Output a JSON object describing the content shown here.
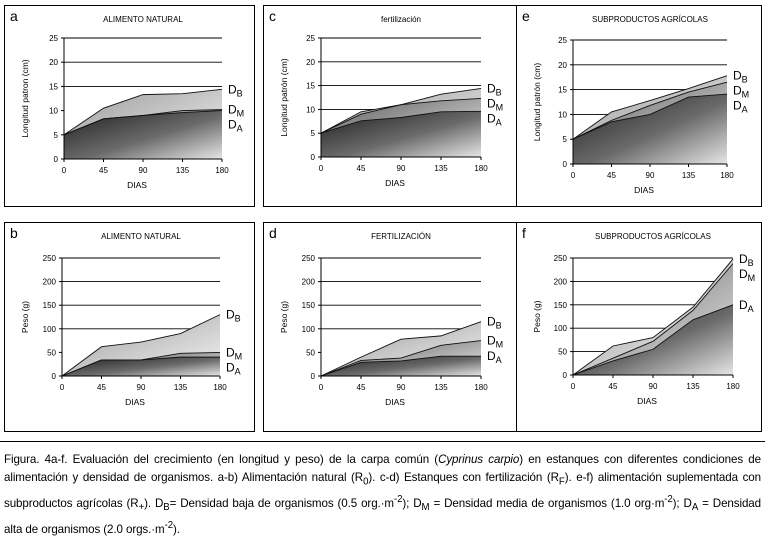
{
  "panels": [
    {
      "letter": "a",
      "title": "ALIMENTO NATURAL",
      "chart_data": {
        "type": "area",
        "ylabel": "Longitud patron  (cm)",
        "xlabel": "DIAS",
        "x": [
          0,
          45,
          90,
          135,
          180
        ],
        "ylim": [
          0,
          25
        ],
        "yticks": [
          0,
          5,
          10,
          15,
          20,
          25
        ],
        "gridlines": [
          15,
          20,
          25
        ],
        "series": [
          {
            "name": "DB",
            "values": [
              5,
              10.5,
              13.3,
              13.5,
              14.4
            ]
          },
          {
            "name": "DM",
            "values": [
              5,
              8.3,
              9.0,
              10.0,
              10.2
            ]
          },
          {
            "name": "DA",
            "values": [
              5,
              8.3,
              9.0,
              9.6,
              10.0
            ]
          }
        ]
      }
    },
    {
      "letter": "c",
      "title": "fertilización",
      "chart_data": {
        "type": "area",
        "ylabel": "Longitud patrón  (cm)",
        "xlabel": "DIAS",
        "x": [
          0,
          45,
          90,
          135,
          180
        ],
        "ylim": [
          0,
          25
        ],
        "yticks": [
          0,
          5,
          10,
          15,
          20,
          25
        ],
        "gridlines": [
          10,
          15,
          20,
          25
        ],
        "series": [
          {
            "name": "DB",
            "values": [
              5,
              9.5,
              11.0,
              13.2,
              14.4
            ]
          },
          {
            "name": "DM",
            "values": [
              5,
              9.0,
              11.0,
              11.8,
              12.3
            ]
          },
          {
            "name": "DA",
            "values": [
              5,
              7.6,
              8.3,
              9.5,
              9.6
            ]
          }
        ]
      }
    },
    {
      "letter": "e",
      "title": "SUBPRODUCTOS AGRÍCOLAS",
      "chart_data": {
        "type": "area",
        "ylabel": "Longitud patrón  (cm)",
        "xlabel": "DIAS",
        "x": [
          0,
          45,
          90,
          135,
          180
        ],
        "ylim": [
          0,
          25
        ],
        "yticks": [
          0,
          5,
          10,
          15,
          20,
          25
        ],
        "gridlines": [
          10,
          15,
          20,
          25
        ],
        "series": [
          {
            "name": "DB",
            "values": [
              5,
              10.5,
              12.8,
              15.2,
              17.8
            ]
          },
          {
            "name": "DM",
            "values": [
              5,
              8.8,
              11.8,
              14.5,
              16.5
            ]
          },
          {
            "name": "DA",
            "values": [
              5,
              8.5,
              10.0,
              13.5,
              14.1
            ]
          }
        ]
      }
    },
    {
      "letter": "b",
      "title": "ALIMENTO NATURAL",
      "chart_data": {
        "type": "area",
        "ylabel": "Peso  (g)",
        "xlabel": "DIAS",
        "x": [
          0,
          45,
          90,
          135,
          180
        ],
        "ylim": [
          0,
          250
        ],
        "yticks": [
          0,
          50,
          100,
          150,
          200,
          250
        ],
        "gridlines": [
          100,
          150,
          200,
          250
        ],
        "series": [
          {
            "name": "DB",
            "values": [
              0,
              62,
              72,
              90,
              130
            ]
          },
          {
            "name": "DM",
            "values": [
              0,
              34,
              34,
              48,
              50
            ]
          },
          {
            "name": "DA",
            "values": [
              0,
              34,
              34,
              40,
              40
            ]
          }
        ]
      }
    },
    {
      "letter": "d",
      "title": "FERTILIZACIÓN",
      "chart_data": {
        "type": "area",
        "ylabel": "Peso  (g)",
        "xlabel": "DIAS",
        "x": [
          0,
          45,
          90,
          135,
          180
        ],
        "ylim": [
          0,
          250
        ],
        "yticks": [
          0,
          50,
          100,
          150,
          200,
          250
        ],
        "gridlines": [
          100,
          150,
          200,
          250
        ],
        "series": [
          {
            "name": "DB",
            "values": [
              0,
              40,
              78,
              85,
              115
            ]
          },
          {
            "name": "DM",
            "values": [
              0,
              33,
              38,
              65,
              75
            ]
          },
          {
            "name": "DA",
            "values": [
              0,
              29,
              32,
              42,
              42
            ]
          }
        ]
      }
    },
    {
      "letter": "f",
      "title": "SUBPRODUCTOS AGRÍCOLAS",
      "chart_data": {
        "type": "area",
        "ylabel": "Peso  (g)",
        "xlabel": "DIAS",
        "x": [
          0,
          45,
          90,
          135,
          180
        ],
        "ylim": [
          0,
          250
        ],
        "yticks": [
          0,
          50,
          100,
          150,
          200,
          250
        ],
        "gridlines": [
          50,
          100,
          150,
          200,
          250
        ],
        "series": [
          {
            "name": "DB",
            "values": [
              0,
              62,
              80,
              145,
              248
            ]
          },
          {
            "name": "DM",
            "values": [
              0,
              36,
              72,
              138,
              238
            ]
          },
          {
            "name": "DA",
            "values": [
              0,
              30,
              55,
              118,
              150
            ]
          }
        ]
      }
    }
  ],
  "legend_labels": {
    "DB": {
      "main": "D",
      "sub": "B"
    },
    "DM": {
      "main": "D",
      "sub": "M"
    },
    "DA": {
      "main": "D",
      "sub": "A"
    }
  },
  "caption": {
    "p1": "Figura. 4a-f. Evaluación del crecimiento (en longitud y peso) de la carpa común (",
    "species": "Cyprinus carpio",
    "p2": ") en estanques con diferentes condiciones de alimentación y densidad de organismos. a-b) Alimentación natural (R",
    "sub0": "0",
    "p3": "). c-d) Estanques con fertilización (R",
    "subF": "F",
    "p4": "). e-f) alimentación suplementada con subproductos agrícolas (R",
    "subplus": "+",
    "p5": "). D",
    "subB": "B",
    "p6": "= Densidad baja de organismos (0.5 org.·m",
    "exp1": "-2",
    "p7": "); D",
    "subM": "M",
    "p8": " = Densidad media de organismos (1.0 org·m",
    "exp2": "-2",
    "p9": "); D",
    "subA": "A",
    "p10": " = Densidad alta de organismos (2.0 orgs.·m",
    "exp3": "-2",
    "p11": ")."
  }
}
